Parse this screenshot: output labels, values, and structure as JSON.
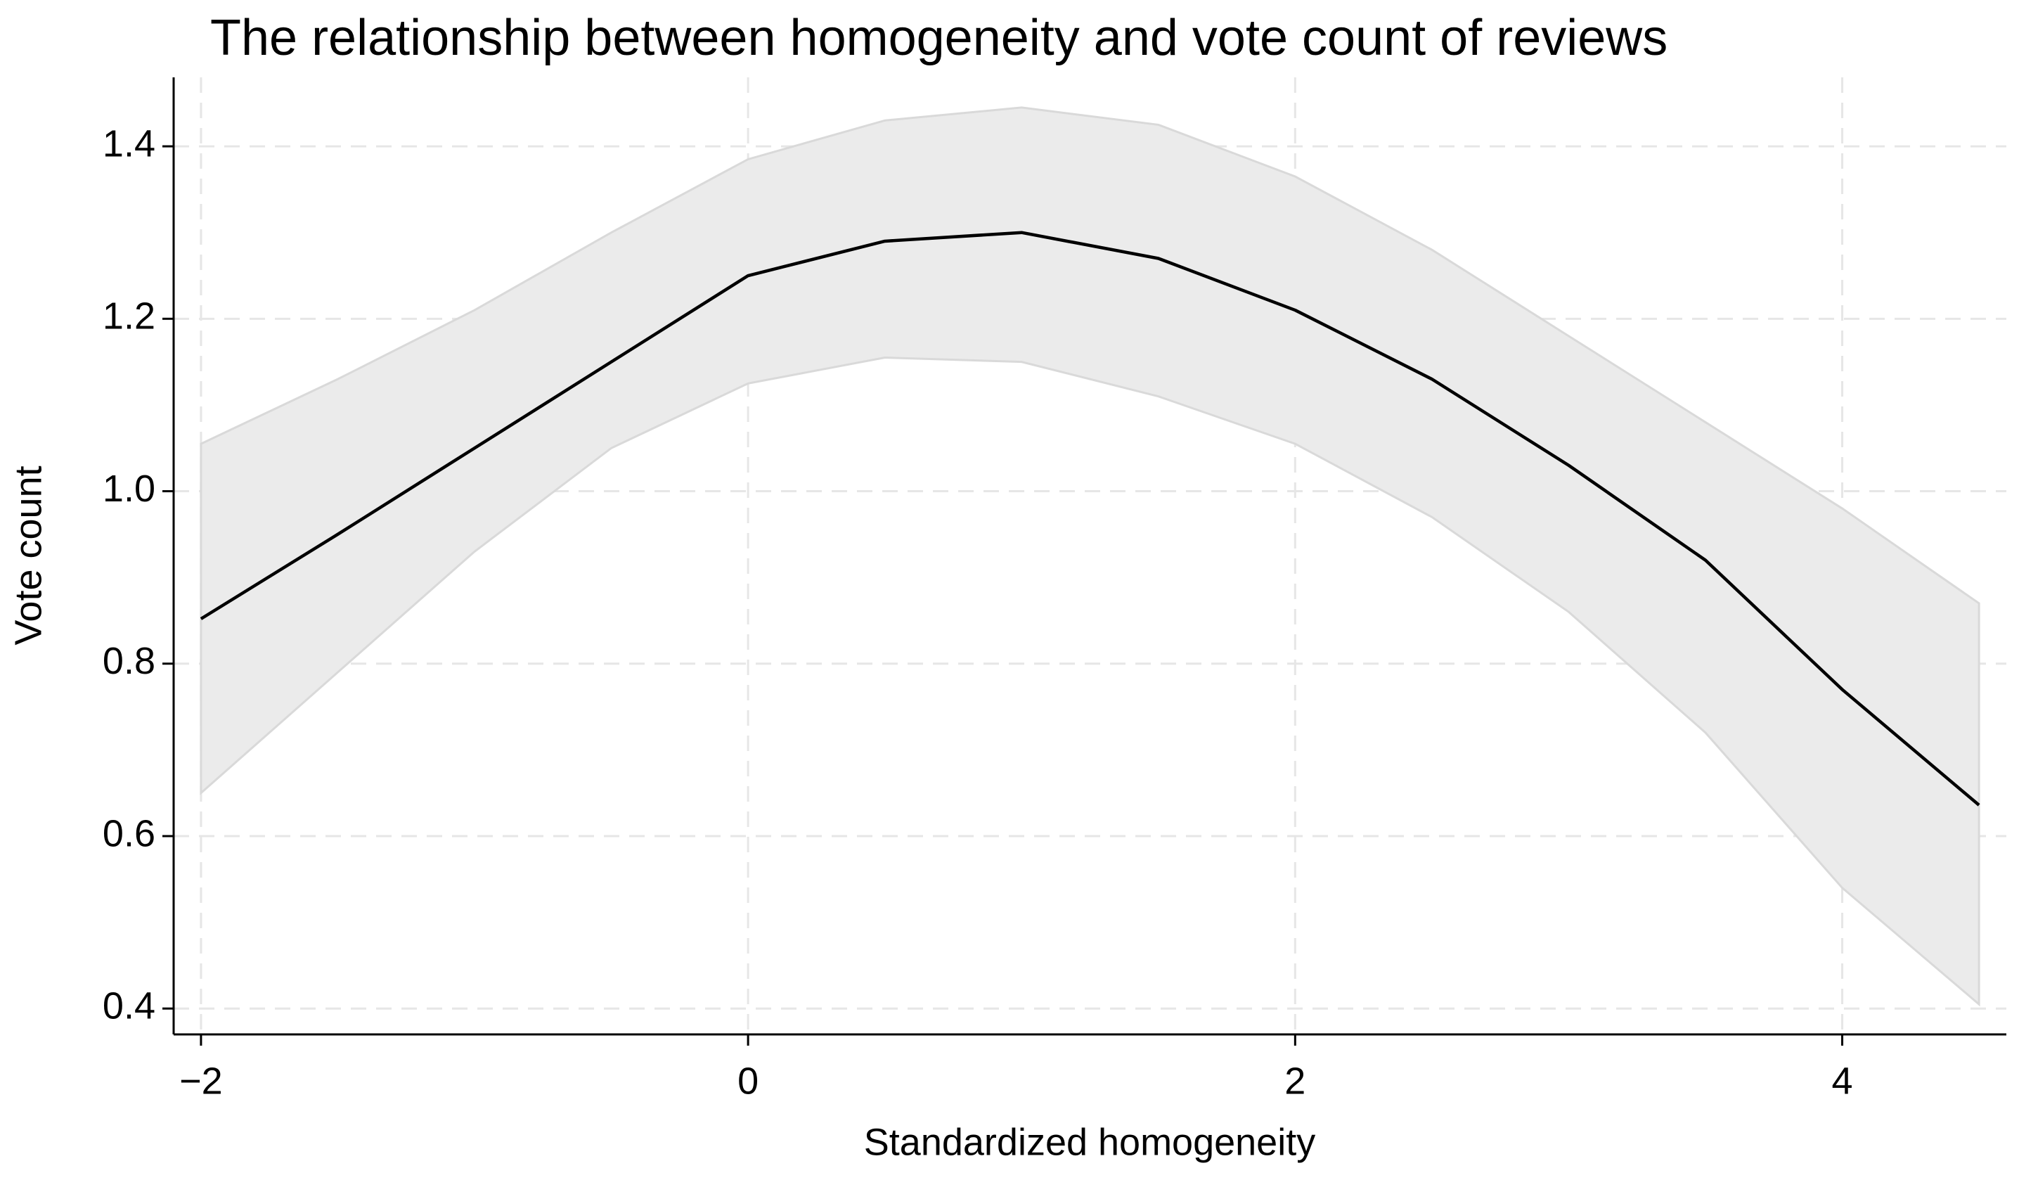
{
  "chart_data": {
    "type": "line",
    "title": "The relationship between homogeneity and vote count of reviews",
    "x_label": "Standardized homogeneity",
    "y_label": "Vote count",
    "x": [
      -2,
      -1.5,
      -1,
      -0.5,
      0,
      0.5,
      1,
      1.5,
      2,
      2.5,
      3,
      3.5,
      4,
      4.5
    ],
    "values": [
      0.852,
      0.95,
      1.05,
      1.15,
      1.25,
      1.29,
      1.3,
      1.27,
      1.21,
      1.13,
      1.03,
      0.92,
      0.77,
      0.636
    ],
    "ci_upper": [
      1.055,
      1.13,
      1.21,
      1.3,
      1.385,
      1.43,
      1.445,
      1.425,
      1.365,
      1.28,
      1.18,
      1.08,
      0.98,
      0.87
    ],
    "ci_lower": [
      0.65,
      0.79,
      0.93,
      1.05,
      1.125,
      1.155,
      1.15,
      1.11,
      1.055,
      0.97,
      0.86,
      0.72,
      0.54,
      0.405
    ],
    "color": "#000000",
    "band_color": "#ebebeb",
    "xlim": [
      -2.1,
      4.6
    ],
    "ylim": [
      0.37,
      1.48
    ],
    "xticks": [
      {
        "value": -2,
        "label": "−2"
      },
      0,
      2,
      4
    ],
    "yticks": [
      0.4,
      0.6,
      0.8,
      {
        "value": 1,
        "label": "1.0"
      },
      1.2,
      1.4
    ],
    "grid": true
  }
}
